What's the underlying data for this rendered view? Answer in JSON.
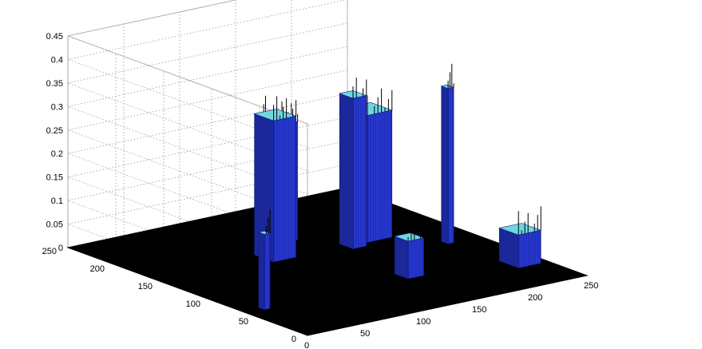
{
  "chart_data": {
    "type": "surface3d",
    "title": "",
    "xlabel": "",
    "ylabel": "",
    "zlabel": "",
    "xlim": [
      0,
      250
    ],
    "ylim": [
      0,
      250
    ],
    "zlim": [
      0,
      0.45
    ],
    "grid": true,
    "x_ticks": [
      "0",
      "50",
      "100",
      "150",
      "200",
      "250"
    ],
    "y_ticks": [
      "0",
      "50",
      "100",
      "150",
      "200",
      "250"
    ],
    "z_ticks": [
      "0",
      "0.05",
      "0.1",
      "0.15",
      "0.2",
      "0.25",
      "0.3",
      "0.35",
      "0.4",
      "0.45"
    ],
    "colors": {
      "surface": "#000000",
      "column": "#1f2fbf",
      "column_edge": "#101a80",
      "peak": "#6fd6e0"
    },
    "peaks": [
      {
        "x": 125,
        "y": 195,
        "w": 5,
        "d": 5,
        "height": 0.25
      },
      {
        "x": 104,
        "y": 155,
        "w": 20,
        "d": 20,
        "height": 0.3
      },
      {
        "x": 135,
        "y": 183,
        "w": 14,
        "d": 14,
        "height": 0.25
      },
      {
        "x": 18,
        "y": 66,
        "w": 5,
        "d": 6,
        "height": 0.16
      },
      {
        "x": 165,
        "y": 145,
        "w": 12,
        "d": 14,
        "height": 0.32
      },
      {
        "x": 188,
        "y": 155,
        "w": 22,
        "d": 22,
        "height": 0.27
      },
      {
        "x": 151,
        "y": 70,
        "w": 14,
        "d": 14,
        "height": 0.08
      },
      {
        "x": 223,
        "y": 114,
        "w": 5,
        "d": 7,
        "height": 0.33
      },
      {
        "x": 233,
        "y": 50,
        "w": 20,
        "d": 20,
        "height": 0.07
      }
    ]
  }
}
